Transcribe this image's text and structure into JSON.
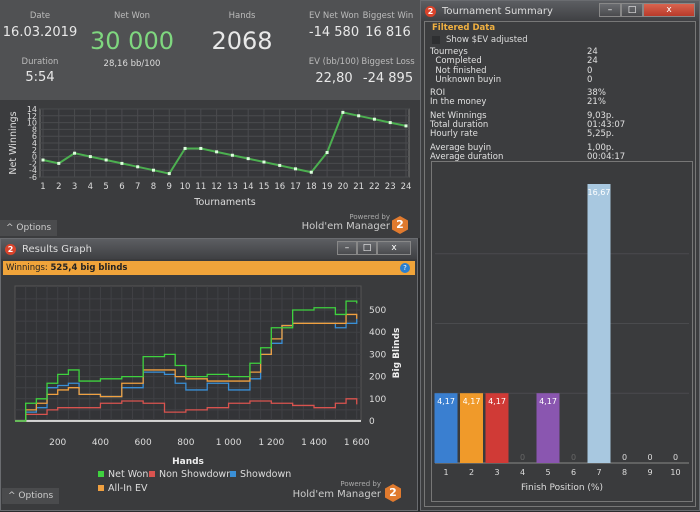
{
  "stats": {
    "date_label": "Date",
    "date": "16.03.2019",
    "duration_label": "Duration",
    "duration": "5:54",
    "net_won_label": "Net Won",
    "net_won": "30 000",
    "bb100": "28,16 bb/100",
    "hands_label": "Hands",
    "hands": "2068",
    "ev_net_won_label": "EV Net Won",
    "ev_net_won": "-14 580",
    "biggest_win_label": "Biggest Win",
    "biggest_win": "16 816",
    "ev_bb100_label": "EV (bb/100)",
    "ev_bb100": "22,80",
    "biggest_loss_label": "Biggest Loss",
    "biggest_loss": "-24 895",
    "net_won_color": "#7fd77f"
  },
  "branding": {
    "powered_by": "Powered by",
    "product": "Hold'em Manager",
    "logo": "2"
  },
  "options_label": "Options",
  "results_graph": {
    "title": "Results Graph",
    "winnings_label": "Winnings:",
    "winnings_value": "525,4 big blinds",
    "banner_color": "#f0a43a"
  },
  "tournament_summary": {
    "title": "Tournament Summary",
    "section": "Filtered Data",
    "checkbox_label": "Show $EV adjusted",
    "checkbox_checked": false,
    "groups": [
      [
        [
          "Tourneys",
          "24"
        ],
        [
          "  Completed",
          "24"
        ],
        [
          "  Not finished",
          "0"
        ],
        [
          "  Unknown buyin",
          "0"
        ]
      ],
      [
        [
          "ROI",
          "38%"
        ],
        [
          "In the money",
          "21%"
        ]
      ],
      [
        [
          "Net Winnings",
          "9,03p."
        ],
        [
          "Total duration",
          "01:43:07"
        ],
        [
          "Hourly rate",
          "5,25p."
        ]
      ],
      [
        [
          "Average buyin",
          "1,00p."
        ],
        [
          "Average duration",
          "00:04:17"
        ]
      ]
    ]
  },
  "chart_data": [
    {
      "type": "line",
      "xlabel": "Tournaments",
      "ylabel": "Net Winnings",
      "ylim": [
        -6,
        14
      ],
      "yticks": [
        14,
        12,
        10,
        8,
        6,
        4,
        2,
        0,
        -2,
        -4,
        -6
      ],
      "grid": true,
      "x": [
        1,
        2,
        3,
        4,
        5,
        6,
        7,
        8,
        9,
        10,
        11,
        12,
        13,
        14,
        15,
        16,
        17,
        18,
        19,
        20,
        21,
        22,
        23,
        24
      ],
      "values": [
        -1,
        -2,
        1,
        0,
        -1,
        -2,
        -3,
        -4,
        -5,
        2.4,
        2.4,
        1.4,
        0.4,
        -0.6,
        -1.6,
        -2.6,
        -3.6,
        -4.6,
        1.2,
        13,
        12,
        11,
        10,
        9.03
      ],
      "color": "#4caf50"
    },
    {
      "type": "line",
      "xlabel": "Hands",
      "ylabel": "Big Blinds",
      "xticks": [
        "200",
        "400",
        "600",
        "800",
        "1 000",
        "1 200",
        "1 400",
        "1 600"
      ],
      "xlim": [
        0,
        1620
      ],
      "ylim": [
        -20,
        560
      ],
      "yticks": [
        0,
        100,
        200,
        300,
        400,
        500
      ],
      "grid": true,
      "legend": "bottom",
      "series": [
        {
          "name": "Net Won",
          "color": "#3fd23f",
          "x": [
            0,
            50,
            100,
            150,
            200,
            250,
            300,
            400,
            500,
            600,
            700,
            750,
            800,
            900,
            1000,
            1100,
            1150,
            1200,
            1300,
            1400,
            1500,
            1550,
            1600
          ],
          "values": [
            0,
            80,
            100,
            170,
            210,
            230,
            180,
            190,
            200,
            290,
            300,
            250,
            200,
            210,
            200,
            260,
            330,
            420,
            500,
            510,
            480,
            540,
            530
          ]
        },
        {
          "name": "Non Showdown",
          "color": "#d9534f",
          "x": [
            0,
            50,
            100,
            150,
            200,
            300,
            400,
            500,
            600,
            700,
            800,
            900,
            1000,
            1100,
            1200,
            1300,
            1400,
            1500,
            1550,
            1600
          ],
          "values": [
            0,
            30,
            30,
            50,
            60,
            60,
            80,
            90,
            80,
            40,
            50,
            60,
            80,
            90,
            80,
            70,
            60,
            80,
            100,
            75
          ]
        },
        {
          "name": "Showdown",
          "color": "#3a8fd6",
          "x": [
            0,
            50,
            100,
            150,
            200,
            250,
            300,
            400,
            500,
            600,
            700,
            750,
            800,
            900,
            1000,
            1100,
            1150,
            1200,
            1250,
            1300,
            1400,
            1500,
            1550,
            1600
          ],
          "values": [
            0,
            40,
            60,
            150,
            160,
            170,
            120,
            110,
            150,
            220,
            210,
            170,
            140,
            170,
            140,
            190,
            300,
            350,
            430,
            440,
            440,
            420,
            440,
            460
          ]
        },
        {
          "name": "All-In EV",
          "color": "#f0a040",
          "x": [
            0,
            50,
            100,
            150,
            200,
            250,
            300,
            400,
            500,
            600,
            700,
            750,
            800,
            900,
            1000,
            1100,
            1150,
            1200,
            1250,
            1300,
            1400,
            1500,
            1550,
            1600
          ],
          "values": [
            0,
            50,
            80,
            120,
            140,
            150,
            120,
            110,
            170,
            230,
            230,
            200,
            190,
            180,
            180,
            220,
            300,
            370,
            430,
            440,
            440,
            440,
            480,
            460
          ]
        }
      ]
    },
    {
      "type": "bar",
      "xlabel": "Finish Position (%)",
      "categories": [
        "1",
        "2",
        "3",
        "4",
        "5",
        "6",
        "7",
        "8",
        "9",
        "10"
      ],
      "values": [
        4.17,
        4.17,
        4.17,
        0,
        4.17,
        0,
        16.67,
        0,
        0,
        0
      ],
      "labels": [
        "4,17",
        "4,17",
        "4,17",
        "0",
        "4,17",
        "0",
        "16,67",
        "0",
        "0",
        "0"
      ],
      "ylim": [
        0,
        16.67
      ],
      "colors": [
        "#3a7fd0",
        "#f09a2a",
        "#d03a36",
        "#888",
        "#8a56b0",
        "#888",
        "#a8c8e0",
        "#888",
        "#888",
        "#888"
      ]
    }
  ]
}
